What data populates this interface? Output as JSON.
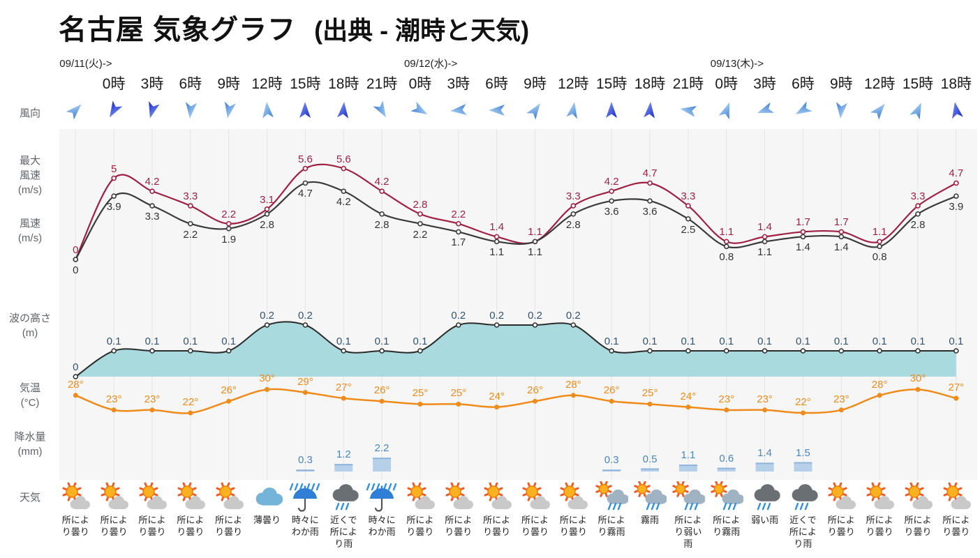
{
  "header": {
    "title": "名古屋 気象グラフ",
    "subtitle": "(出典 - 潮時と天気)"
  },
  "row_labels": {
    "wind_direction": "風向",
    "max_wind": "最大\n風速\n(m/s)",
    "wind_speed": "風速\n(m/s)",
    "wave_height": "波の高さ\n(m)",
    "temperature": "気温\n(°C)",
    "precipitation": "降水量\n(mm)",
    "weather": "天気"
  },
  "chart_data": {
    "type": "line",
    "title": "名古屋 気象グラフ",
    "source": "出典 - 潮時と天気",
    "x_tick_labels": [
      "",
      "0時",
      "3時",
      "6時",
      "9時",
      "12時",
      "15時",
      "18時",
      "21時",
      "0時",
      "3時",
      "6時",
      "9時",
      "12時",
      "15時",
      "18時",
      "21時",
      "0時",
      "3時",
      "6時",
      "9時",
      "12時",
      "15時",
      "18時"
    ],
    "day_markers": [
      {
        "label": "09/11(火)->",
        "col": 0
      },
      {
        "label": "09/12(水)->",
        "col": 9
      },
      {
        "label": "09/13(木)->",
        "col": 17
      }
    ],
    "axes": {
      "wind_ylim": [
        0,
        6
      ],
      "wave_ylim": [
        0,
        0.35
      ],
      "temp_ylim": [
        21,
        31
      ],
      "precip_ylim": [
        0,
        2.5
      ]
    },
    "wind_direction_deg": [
      45,
      210,
      195,
      185,
      190,
      355,
      0,
      5,
      150,
      120,
      265,
      270,
      35,
      10,
      0,
      5,
      280,
      20,
      250,
      240,
      185,
      40,
      25,
      350
    ],
    "series": [
      {
        "name": "最大風速 (m/s)",
        "type": "line",
        "color": "#9e2043",
        "values": [
          0,
          5,
          4.2,
          3.3,
          2.2,
          3.1,
          5.6,
          5.6,
          4.2,
          2.8,
          2.2,
          1.4,
          1.1,
          3.3,
          4.2,
          4.7,
          3.3,
          1.1,
          1.4,
          1.7,
          1.7,
          1.1,
          3.3,
          4.7
        ]
      },
      {
        "name": "風速 (m/s)",
        "type": "line",
        "color": "#3a3a3a",
        "values": [
          0,
          3.9,
          3.3,
          2.2,
          1.9,
          2.8,
          4.7,
          4.2,
          2.8,
          2.2,
          1.7,
          1.1,
          1.1,
          2.8,
          3.6,
          3.6,
          2.5,
          0.8,
          1.1,
          1.4,
          1.4,
          0.8,
          2.8,
          3.9
        ]
      },
      {
        "name": "波の高さ (m)",
        "type": "area",
        "color": "#2b2b2b",
        "fill": "#a9dade",
        "label_color": "#33536e",
        "values": [
          0,
          0.1,
          0.1,
          0.1,
          0.1,
          0.2,
          0.2,
          0.1,
          0.1,
          0.1,
          0.2,
          0.2,
          0.2,
          0.2,
          0.1,
          0.1,
          0.1,
          0.1,
          0.1,
          0.1,
          0.1,
          0.1,
          0.1,
          0.1
        ]
      },
      {
        "name": "気温 (°C)",
        "type": "line",
        "color": "#ef8b1a",
        "unit_suffix": "°",
        "values": [
          28,
          23,
          23,
          22,
          26,
          30,
          29,
          27,
          26,
          25,
          25,
          24,
          26,
          28,
          26,
          25,
          24,
          23,
          23,
          22,
          23,
          28,
          30,
          27
        ]
      },
      {
        "name": "降水量 (mm)",
        "type": "bar",
        "color": "#b7d0ea",
        "label_color": "#4a86b8",
        "values": [
          0,
          0,
          0,
          0,
          0,
          0,
          0.3,
          1.2,
          2.2,
          0,
          0,
          0,
          0,
          0,
          0.3,
          0.5,
          1.1,
          0.6,
          1.4,
          1.5,
          0,
          0,
          0,
          0
        ]
      }
    ],
    "weather": [
      {
        "icon": "sun-cloud",
        "label": "所により曇り"
      },
      {
        "icon": "sun-cloud",
        "label": "所により曇り"
      },
      {
        "icon": "sun-cloud",
        "label": "所により曇り"
      },
      {
        "icon": "sun-cloud",
        "label": "所により曇り"
      },
      {
        "icon": "sun-cloud",
        "label": "所により曇り"
      },
      {
        "icon": "cloud",
        "label": "薄曇り"
      },
      {
        "icon": "umbrella-rain",
        "label": "時々にわか雨"
      },
      {
        "icon": "rain-cloud",
        "label": "近くで所により雨"
      },
      {
        "icon": "umbrella-rain",
        "label": "時々にわか雨"
      },
      {
        "icon": "sun-cloud",
        "label": "所により曇り"
      },
      {
        "icon": "sun-cloud",
        "label": "所により曇り"
      },
      {
        "icon": "sun-cloud",
        "label": "所により曇り"
      },
      {
        "icon": "sun-cloud",
        "label": "所により曇り"
      },
      {
        "icon": "sun-cloud",
        "label": "所により曇り"
      },
      {
        "icon": "sun-rain",
        "label": "所により霧雨"
      },
      {
        "icon": "sun-rain",
        "label": "霧雨"
      },
      {
        "icon": "sun-rain",
        "label": "所により弱い雨"
      },
      {
        "icon": "sun-rain",
        "label": "所により霧雨"
      },
      {
        "icon": "rain-cloud",
        "label": "弱い雨"
      },
      {
        "icon": "rain-cloud",
        "label": "近くで所により雨"
      },
      {
        "icon": "sun-cloud",
        "label": "所により曇り"
      },
      {
        "icon": "sun-cloud",
        "label": "所により曇り"
      },
      {
        "icon": "sun-cloud",
        "label": "所により曇り"
      },
      {
        "icon": "sun-cloud",
        "label": "所により曇り"
      }
    ]
  }
}
